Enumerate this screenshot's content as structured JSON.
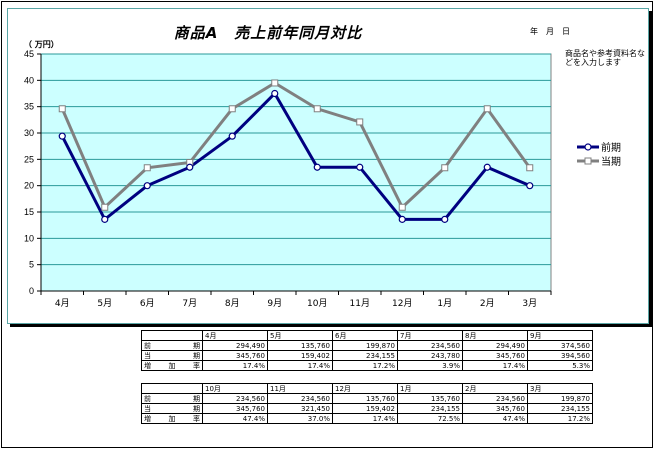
{
  "header": {
    "title": "商品A　売上前年同月対比",
    "date_label": "年　月　日",
    "note": "商品名や参考資料名などを入力します",
    "unit": "（ 万円）"
  },
  "chart_data": {
    "type": "line",
    "title": "商品A　売上前年同月対比",
    "ylabel": "（ 万円）",
    "categories": [
      "4月",
      "5月",
      "6月",
      "7月",
      "8月",
      "9月",
      "10月",
      "11月",
      "12月",
      "1月",
      "2月",
      "3月"
    ],
    "ylim": [
      0,
      45
    ],
    "yticks": [
      0,
      5,
      10,
      15,
      20,
      25,
      30,
      35,
      40,
      45
    ],
    "grid": true,
    "legend_position": "right",
    "series": [
      {
        "name": "前期",
        "color": "#000080",
        "marker": "circle",
        "values": [
          29.4,
          13.6,
          20.0,
          23.5,
          29.4,
          37.5,
          23.5,
          23.5,
          13.6,
          13.6,
          23.5,
          20.0
        ]
      },
      {
        "name": "当期",
        "color": "#808080",
        "marker": "square",
        "values": [
          34.6,
          15.9,
          23.4,
          24.4,
          34.6,
          39.5,
          34.6,
          32.1,
          15.9,
          23.4,
          34.6,
          23.4
        ]
      }
    ]
  },
  "tables": [
    {
      "months": [
        "4月",
        "5月",
        "6月",
        "7月",
        "8月",
        "9月"
      ],
      "rows": [
        {
          "label": "前期",
          "values": [
            "294,490",
            "135,760",
            "199,870",
            "234,560",
            "294,490",
            "374,560"
          ]
        },
        {
          "label": "当期",
          "values": [
            "345,760",
            "159,402",
            "234,155",
            "243,780",
            "345,760",
            "394,560"
          ]
        },
        {
          "label": "増加率",
          "values": [
            "17.4%",
            "17.4%",
            "17.2%",
            "3.9%",
            "17.4%",
            "5.3%"
          ]
        }
      ]
    },
    {
      "months": [
        "10月",
        "11月",
        "12月",
        "1月",
        "2月",
        "3月"
      ],
      "rows": [
        {
          "label": "前期",
          "values": [
            "234,560",
            "234,560",
            "135,760",
            "135,760",
            "234,560",
            "199,870"
          ]
        },
        {
          "label": "当期",
          "values": [
            "345,760",
            "321,450",
            "159,402",
            "234,155",
            "345,760",
            "234,155"
          ]
        },
        {
          "label": "増加率",
          "values": [
            "47.4%",
            "37.0%",
            "17.4%",
            "72.5%",
            "47.4%",
            "17.2%"
          ]
        }
      ]
    }
  ]
}
